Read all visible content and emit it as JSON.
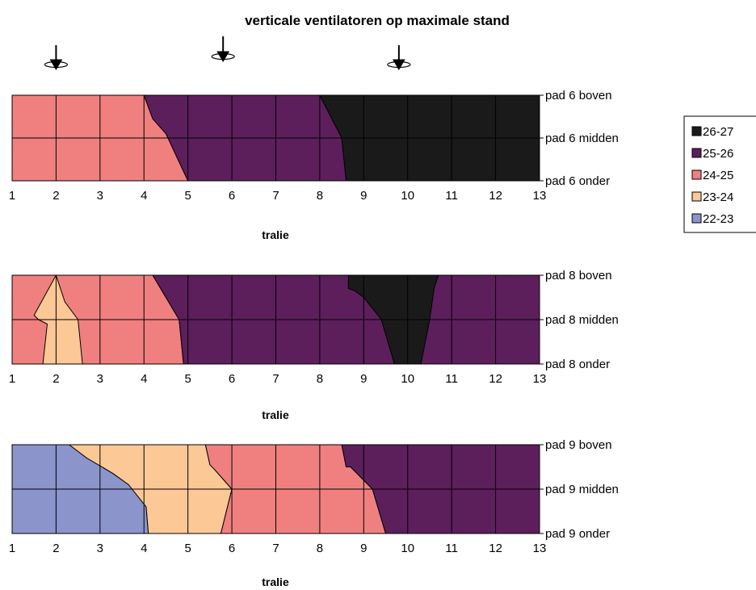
{
  "title": "verticale ventilatoren op maximale stand",
  "colors": {
    "26-27": "#1a1a1a",
    "25-26": "#5c1f5c",
    "24-25": "#f08080",
    "23-24": "#fcc896",
    "22-23": "#8c94cc"
  },
  "legend": {
    "placement": "right",
    "items": [
      {
        "label": "26-27",
        "key": "26-27"
      },
      {
        "label": "25-26",
        "key": "25-26"
      },
      {
        "label": "24-25",
        "key": "24-25"
      },
      {
        "label": "23-24",
        "key": "23-24"
      },
      {
        "label": "22-23",
        "key": "22-23"
      }
    ]
  },
  "fans": [
    {
      "icon": "fan-icon",
      "x": 2
    },
    {
      "icon": "fan-icon",
      "x": 5.8
    },
    {
      "icon": "fan-icon",
      "x": 9.8
    }
  ],
  "chart_data": [
    {
      "type": "contour",
      "xlabel": "tralie",
      "xlim": [
        1,
        13
      ],
      "x_ticks": [
        "1",
        "2",
        "3",
        "4",
        "5",
        "6",
        "7",
        "8",
        "9",
        "10",
        "11",
        "12",
        "13"
      ],
      "y_levels": [
        "pad 6 boven",
        "pad 6 midden",
        "pad 6 onder"
      ],
      "grid": true,
      "regions": [
        {
          "range": "24-25",
          "poly": [
            [
              1,
              0
            ],
            [
              4,
              0
            ],
            [
              4.2,
              0.55
            ],
            [
              4.5,
              0.9
            ],
            [
              5,
              2
            ],
            [
              1,
              2
            ]
          ]
        },
        {
          "range": "25-26",
          "poly": [
            [
              4,
              0
            ],
            [
              8,
              0
            ],
            [
              8.4,
              0.8
            ],
            [
              8.5,
              1
            ],
            [
              8.6,
              2
            ],
            [
              5,
              2
            ],
            [
              4.5,
              0.9
            ],
            [
              4.2,
              0.55
            ]
          ]
        },
        {
          "range": "26-27",
          "poly": [
            [
              8,
              0
            ],
            [
              13,
              0
            ],
            [
              13,
              2
            ],
            [
              8.6,
              2
            ],
            [
              8.5,
              1
            ],
            [
              8.4,
              0.8
            ]
          ]
        }
      ]
    },
    {
      "type": "contour",
      "xlabel": "tralie",
      "xlim": [
        1,
        13
      ],
      "x_ticks": [
        "1",
        "2",
        "3",
        "4",
        "5",
        "6",
        "7",
        "8",
        "9",
        "10",
        "11",
        "12",
        "13"
      ],
      "y_levels": [
        "pad 8 boven",
        "pad 8 midden",
        "pad 8 onder"
      ],
      "grid": true,
      "regions": [
        {
          "range": "24-25",
          "poly": [
            [
              1,
              0
            ],
            [
              4.2,
              0
            ],
            [
              4.8,
              1
            ],
            [
              4.9,
              2
            ],
            [
              1,
              2
            ]
          ]
        },
        {
          "range": "23-24",
          "poly": [
            [
              2,
              0
            ],
            [
              2.2,
              0.6
            ],
            [
              2.5,
              1
            ],
            [
              2.6,
              2
            ],
            [
              1.7,
              2
            ],
            [
              1.8,
              1.1
            ],
            [
              1.6,
              1
            ],
            [
              1.5,
              0.9
            ]
          ]
        },
        {
          "range": "25-26",
          "poly": [
            [
              4.2,
              0
            ],
            [
              13,
              0
            ],
            [
              13,
              2
            ],
            [
              4.9,
              2
            ],
            [
              4.8,
              1
            ]
          ]
        },
        {
          "range": "26-27",
          "poly": [
            [
              8.65,
              0
            ],
            [
              10.7,
              0
            ],
            [
              10.6,
              0.3
            ],
            [
              10.5,
              1
            ],
            [
              10.3,
              2
            ],
            [
              9.7,
              2
            ],
            [
              9.4,
              1
            ],
            [
              9.0,
              0.5
            ],
            [
              8.8,
              0.35
            ],
            [
              8.65,
              0.3
            ]
          ]
        }
      ]
    },
    {
      "type": "contour",
      "xlabel": "tralie",
      "xlim": [
        1,
        13
      ],
      "x_ticks": [
        "1",
        "2",
        "3",
        "4",
        "5",
        "6",
        "7",
        "8",
        "9",
        "10",
        "11",
        "12",
        "13"
      ],
      "y_levels": [
        "pad 9 boven",
        "pad 9 midden",
        "pad 9 onder"
      ],
      "grid": true,
      "regions": [
        {
          "range": "22-23",
          "poly": [
            [
              1,
              0
            ],
            [
              2.3,
              0
            ],
            [
              2.7,
              0.3
            ],
            [
              3.3,
              0.65
            ],
            [
              3.65,
              0.9
            ],
            [
              4.05,
              1.4
            ],
            [
              4.1,
              2
            ],
            [
              1,
              2
            ]
          ]
        },
        {
          "range": "23-24",
          "poly": [
            [
              2.3,
              0
            ],
            [
              5.4,
              0
            ],
            [
              5.5,
              0.45
            ],
            [
              5.6,
              0.55
            ],
            [
              6,
              1
            ],
            [
              5.75,
              2
            ],
            [
              4.1,
              2
            ],
            [
              4.05,
              1.4
            ],
            [
              3.65,
              0.9
            ],
            [
              3.3,
              0.65
            ],
            [
              2.7,
              0.3
            ]
          ]
        },
        {
          "range": "24-25",
          "poly": [
            [
              5.4,
              0
            ],
            [
              8.5,
              0
            ],
            [
              8.6,
              0.5
            ],
            [
              8.7,
              0.5
            ],
            [
              9.2,
              1
            ],
            [
              9.5,
              2
            ],
            [
              5.75,
              2
            ],
            [
              6,
              1
            ],
            [
              5.6,
              0.55
            ],
            [
              5.5,
              0.45
            ]
          ]
        },
        {
          "range": "25-26",
          "poly": [
            [
              8.5,
              0
            ],
            [
              13,
              0
            ],
            [
              13,
              2
            ],
            [
              9.5,
              2
            ],
            [
              9.2,
              1
            ],
            [
              8.7,
              0.5
            ],
            [
              8.6,
              0.5
            ]
          ]
        }
      ]
    }
  ]
}
